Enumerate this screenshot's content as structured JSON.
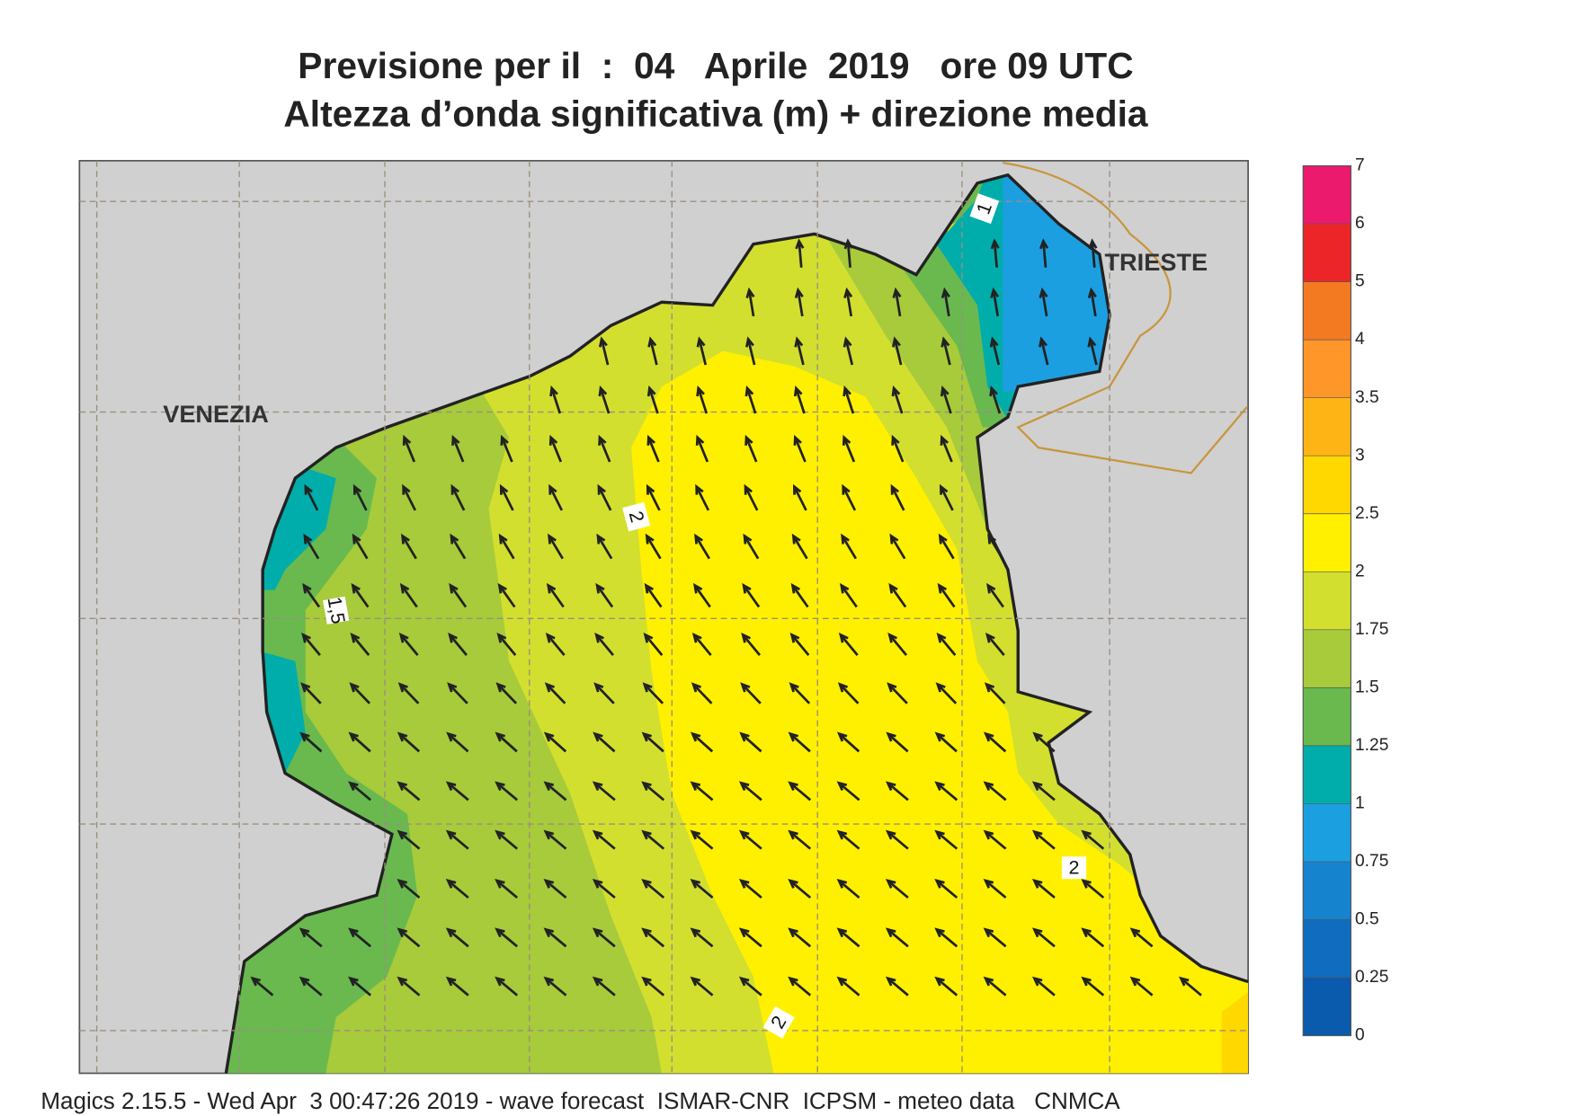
{
  "header": {
    "title": "Previsione per il  :  04   Aprile  2019   ore 09 UTC",
    "subtitle": "Altezza d’onda significativa (m) + direzione media"
  },
  "map": {
    "places": [
      "VENEZIA",
      "TRIESTE"
    ],
    "contour_labels": [
      "2",
      "1,5",
      "2",
      "2",
      "1"
    ]
  },
  "colorbar": {
    "ticks": [
      0,
      0.25,
      0.5,
      0.75,
      1,
      1.25,
      1.5,
      1.75,
      2,
      2.5,
      3,
      3.5,
      4,
      5,
      6,
      7
    ],
    "colors": [
      "#0a5aae",
      "#0f6cbf",
      "#1683cf",
      "#1c9fe0",
      "#00adab",
      "#69b94f",
      "#a7cb3a",
      "#d3df2f",
      "#fff000",
      "#ffd800",
      "#ffb416",
      "#ff962a",
      "#f47a22",
      "#ec2628",
      "#ec1a6c"
    ]
  },
  "footer": "Magics 2.15.5 - Wed Apr  3 00:47:26 2019 - wave forecast  ISMAR-CNR  ICPSM - meteo data   CNMCA"
}
